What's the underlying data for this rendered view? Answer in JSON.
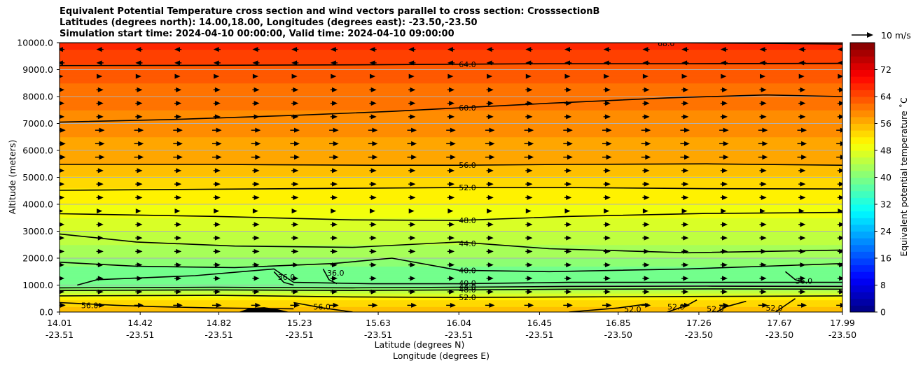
{
  "chart_data": {
    "type": "heatmap",
    "title_lines": [
      "Equivalent Potential Temperature cross section and wind vectors parallel to cross section: CrosssectionB",
      "Latitudes (degrees north): 14.00,18.00, Longitudes (degrees east): -23.50,-23.50",
      "Simulation start time: 2024-04-10 00:00:00, Valid time: 2024-04-10 09:00:00"
    ],
    "ylabel": "Altitude (meters)",
    "xlabel_lat": "Latitude (degrees N)",
    "xlabel_lon": "Longitude (degrees E)",
    "ylim": [
      0,
      10000
    ],
    "y_ticks": [
      {
        "value": 0,
        "label": "0.0"
      },
      {
        "value": 1000,
        "label": "1000.0"
      },
      {
        "value": 2000,
        "label": "2000.0"
      },
      {
        "value": 3000,
        "label": "3000.0"
      },
      {
        "value": 4000,
        "label": "4000.0"
      },
      {
        "value": 5000,
        "label": "5000.0"
      },
      {
        "value": 6000,
        "label": "6000.0"
      },
      {
        "value": 7000,
        "label": "7000.0"
      },
      {
        "value": 8000,
        "label": "8000.0"
      },
      {
        "value": 9000,
        "label": "9000.0"
      },
      {
        "value": 10000,
        "label": "10000.0"
      }
    ],
    "x_ticks": [
      {
        "value": 14.01,
        "lat": "14.01",
        "lon": "-23.51"
      },
      {
        "value": 14.42,
        "lat": "14.42",
        "lon": "-23.51"
      },
      {
        "value": 14.82,
        "lat": "14.82",
        "lon": "-23.51"
      },
      {
        "value": 15.23,
        "lat": "15.23",
        "lon": "-23.51"
      },
      {
        "value": 15.63,
        "lat": "15.63",
        "lon": "-23.51"
      },
      {
        "value": 16.04,
        "lat": "16.04",
        "lon": "-23.51"
      },
      {
        "value": 16.45,
        "lat": "16.45",
        "lon": "-23.51"
      },
      {
        "value": 16.85,
        "lat": "16.85",
        "lon": "-23.50"
      },
      {
        "value": 17.26,
        "lat": "17.26",
        "lon": "-23.50"
      },
      {
        "value": 17.67,
        "lat": "17.67",
        "lon": "-23.50"
      },
      {
        "value": 17.99,
        "lat": "17.99",
        "lon": "-23.50"
      }
    ],
    "xlim": [
      14.01,
      17.99
    ],
    "grid": "horizontal",
    "colorbar": {
      "label": "Equivalent potential temperature ˚C",
      "range": [
        0,
        80
      ],
      "ticks": [
        "0",
        "8",
        "16",
        "24",
        "32",
        "40",
        "48",
        "56",
        "64",
        "72"
      ],
      "tick_values": [
        0,
        8,
        16,
        24,
        32,
        40,
        48,
        56,
        64,
        72
      ],
      "colormap": "jet"
    },
    "quiver_key": {
      "label": "10 m/s"
    },
    "theta_e_profile": [
      {
        "alt": 0,
        "value": 55
      },
      {
        "alt": 400,
        "value": 53
      },
      {
        "alt": 700,
        "value": 46
      },
      {
        "alt": 1000,
        "value": 38
      },
      {
        "alt": 1300,
        "value": 38
      },
      {
        "alt": 1700,
        "value": 40
      },
      {
        "alt": 2000,
        "value": 42
      },
      {
        "alt": 2500,
        "value": 44
      },
      {
        "alt": 3000,
        "value": 46
      },
      {
        "alt": 3500,
        "value": 48
      },
      {
        "alt": 4000,
        "value": 50
      },
      {
        "alt": 4600,
        "value": 52
      },
      {
        "alt": 5500,
        "value": 56
      },
      {
        "alt": 6500,
        "value": 58
      },
      {
        "alt": 7500,
        "value": 60
      },
      {
        "alt": 8500,
        "value": 62
      },
      {
        "alt": 9200,
        "value": 64
      },
      {
        "alt": 10000,
        "value": 67
      }
    ],
    "contours": [
      {
        "value": 68,
        "label": "68.0",
        "points": [
          [
            14.01,
            10000
          ],
          [
            17.1,
            10000
          ],
          [
            17.99,
            9950
          ]
        ],
        "label_at": [
          17.05,
          9980
        ]
      },
      {
        "value": 64,
        "label": "64.0",
        "points": [
          [
            14.01,
            9150
          ],
          [
            14.8,
            9160
          ],
          [
            15.6,
            9180
          ],
          [
            16.04,
            9200
          ],
          [
            16.5,
            9220
          ],
          [
            17.2,
            9220
          ],
          [
            17.99,
            9230
          ]
        ],
        "label_at": [
          16.04,
          9200
        ]
      },
      {
        "value": 60,
        "label": "60.0",
        "points": [
          [
            14.01,
            7050
          ],
          [
            14.6,
            7150
          ],
          [
            15.2,
            7300
          ],
          [
            15.7,
            7450
          ],
          [
            16.04,
            7580
          ],
          [
            16.5,
            7750
          ],
          [
            17.1,
            7950
          ],
          [
            17.6,
            8060
          ],
          [
            17.99,
            8000
          ]
        ],
        "label_at": [
          16.04,
          7580
        ]
      },
      {
        "value": 56,
        "label": "56.0",
        "points": [
          [
            14.01,
            5480
          ],
          [
            14.8,
            5480
          ],
          [
            15.6,
            5450
          ],
          [
            16.04,
            5450
          ],
          [
            16.6,
            5480
          ],
          [
            17.3,
            5500
          ],
          [
            17.99,
            5450
          ]
        ],
        "label_at": [
          16.04,
          5450
        ]
      },
      {
        "value": 52,
        "label": "52.0",
        "points": [
          [
            14.01,
            4520
          ],
          [
            14.8,
            4560
          ],
          [
            15.6,
            4600
          ],
          [
            16.04,
            4620
          ],
          [
            16.6,
            4620
          ],
          [
            17.3,
            4580
          ],
          [
            17.99,
            4570
          ]
        ],
        "label_at": [
          16.04,
          4620
        ]
      },
      {
        "value": 48,
        "label": "48.0",
        "points": [
          [
            14.01,
            3650
          ],
          [
            14.8,
            3550
          ],
          [
            15.5,
            3420
          ],
          [
            16.04,
            3400
          ],
          [
            16.6,
            3550
          ],
          [
            17.3,
            3660
          ],
          [
            17.99,
            3700
          ]
        ],
        "label_at": [
          16.04,
          3400
        ]
      },
      {
        "value": 44,
        "label": "44.0",
        "points": [
          [
            14.01,
            2900
          ],
          [
            14.4,
            2600
          ],
          [
            14.9,
            2450
          ],
          [
            15.5,
            2400
          ],
          [
            16.04,
            2600
          ],
          [
            16.5,
            2350
          ],
          [
            17.2,
            2200
          ],
          [
            17.99,
            2300
          ]
        ],
        "label_at": [
          16.04,
          2550
        ]
      },
      {
        "value": 40,
        "label": "40.0",
        "points": [
          [
            14.01,
            1850
          ],
          [
            14.4,
            1700
          ],
          [
            14.9,
            1650
          ],
          [
            15.4,
            1800
          ],
          [
            15.7,
            2000
          ],
          [
            16.04,
            1550
          ],
          [
            16.5,
            1500
          ],
          [
            17.2,
            1600
          ],
          [
            17.99,
            1800
          ]
        ],
        "label_at": [
          16.04,
          1550
        ]
      },
      {
        "value": 40,
        "label": "40.0",
        "points": [
          [
            14.1,
            1000
          ],
          [
            14.2,
            1200
          ],
          [
            14.7,
            1350
          ],
          [
            15.1,
            1600
          ],
          [
            15.2,
            1100
          ],
          [
            15.6,
            1050
          ],
          [
            16.04,
            1050
          ],
          [
            16.6,
            1100
          ],
          [
            17.3,
            1100
          ],
          [
            17.99,
            1100
          ]
        ],
        "label_at": [
          16.04,
          1080
        ]
      },
      {
        "value": 44,
        "label": "44.0",
        "points": [
          [
            14.01,
            900
          ],
          [
            14.8,
            920
          ],
          [
            15.5,
            900
          ],
          [
            16.04,
            920
          ],
          [
            16.6,
            950
          ],
          [
            17.3,
            960
          ],
          [
            17.99,
            950
          ]
        ],
        "label_at": [
          16.04,
          940
        ]
      },
      {
        "value": 48,
        "label": "48.0",
        "points": [
          [
            14.01,
            800
          ],
          [
            14.8,
            820
          ],
          [
            15.5,
            800
          ],
          [
            16.04,
            820
          ],
          [
            16.6,
            850
          ],
          [
            17.3,
            860
          ],
          [
            17.99,
            850
          ]
        ],
        "label_at": [
          16.04,
          830
        ]
      },
      {
        "value": 52,
        "label": "52.0",
        "points": [
          [
            14.01,
            600
          ],
          [
            14.8,
            620
          ],
          [
            15.5,
            560
          ],
          [
            16.04,
            540
          ],
          [
            16.6,
            560
          ],
          [
            17.3,
            580
          ],
          [
            17.99,
            600
          ]
        ],
        "label_at": [
          16.04,
          540
        ]
      },
      {
        "value": 36,
        "label": "36.0",
        "points": [
          [
            15.1,
            1500
          ],
          [
            15.15,
            1100
          ],
          [
            15.2,
            1000
          ]
        ],
        "label_at": [
          15.12,
          1300
        ]
      },
      {
        "value": 36,
        "label": "36.0",
        "points": [
          [
            15.35,
            1600
          ],
          [
            15.38,
            1200
          ],
          [
            15.42,
            1050
          ]
        ],
        "label_at": [
          15.37,
          1450
        ]
      },
      {
        "value": 36,
        "label": "36.0",
        "points": [
          [
            17.7,
            1500
          ],
          [
            17.75,
            1200
          ],
          [
            17.8,
            1100
          ]
        ],
        "label_at": [
          17.75,
          1150
        ]
      },
      {
        "value": 56,
        "label": "56.0",
        "points": [
          [
            14.01,
            350
          ],
          [
            14.3,
            250
          ],
          [
            14.5,
            200
          ],
          [
            14.8,
            150
          ],
          [
            15.2,
            120
          ]
        ],
        "label_at": [
          14.12,
          250
        ]
      },
      {
        "value": 56,
        "label": "56.0",
        "points": [
          [
            15.2,
            350
          ],
          [
            15.35,
            150
          ],
          [
            15.5,
            0
          ]
        ],
        "label_at": [
          15.3,
          200
        ]
      },
      {
        "value": 52,
        "label": "52.0",
        "points": [
          [
            16.6,
            0
          ],
          [
            16.85,
            150
          ],
          [
            17.0,
            300
          ]
        ],
        "label_at": [
          16.88,
          100
        ]
      },
      {
        "value": 52,
        "label": "52.0",
        "points": [
          [
            17.1,
            0
          ],
          [
            17.2,
            250
          ],
          [
            17.25,
            450
          ]
        ],
        "label_at": [
          17.1,
          200
        ]
      },
      {
        "value": 52,
        "label": "52.0",
        "points": [
          [
            17.35,
            0
          ],
          [
            17.4,
            200
          ],
          [
            17.5,
            400
          ]
        ],
        "label_at": [
          17.3,
          120
        ]
      },
      {
        "value": 52,
        "label": "52.0",
        "points": [
          [
            17.65,
            0
          ],
          [
            17.7,
            250
          ],
          [
            17.75,
            500
          ]
        ],
        "label_at": [
          17.6,
          150
        ]
      }
    ],
    "wind_profile": [
      {
        "alt": 250,
        "u": 4
      },
      {
        "alt": 750,
        "u": 3
      },
      {
        "alt": 1250,
        "u": 3
      },
      {
        "alt": 1750,
        "u": 3
      },
      {
        "alt": 2250,
        "u": 3
      },
      {
        "alt": 2750,
        "u": 3
      },
      {
        "alt": 3250,
        "u": 3
      },
      {
        "alt": 3750,
        "u": 2
      },
      {
        "alt": 4250,
        "u": 3
      },
      {
        "alt": 4750,
        "u": 3
      },
      {
        "alt": 5250,
        "u": 3
      },
      {
        "alt": 5750,
        "u": 4
      },
      {
        "alt": 6250,
        "u": 4
      },
      {
        "alt": 6750,
        "u": 4
      },
      {
        "alt": 7250,
        "u": 3
      },
      {
        "alt": 7750,
        "u": 3
      },
      {
        "alt": 8250,
        "u": 3
      },
      {
        "alt": 8750,
        "u": 2
      },
      {
        "alt": 9250,
        "u": -3
      },
      {
        "alt": 9750,
        "u": -3
      }
    ],
    "terrain": [
      [
        14.92,
        0
      ],
      [
        14.98,
        150
      ],
      [
        15.05,
        180
      ],
      [
        15.12,
        100
      ],
      [
        15.18,
        0
      ]
    ]
  }
}
